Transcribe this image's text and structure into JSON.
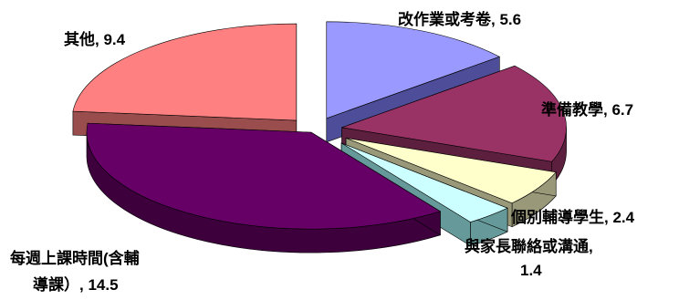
{
  "chart_data": {
    "type": "pie",
    "style": "3d-exploded",
    "slices": [
      {
        "label": "改作業或考卷",
        "value": 5.6,
        "color": "#9999ff",
        "side": "#4d4d99",
        "text": "改作業或考卷, 5.6"
      },
      {
        "label": "準備教學",
        "value": 6.7,
        "color": "#993366",
        "side": "#5c1f3d",
        "text": "準備教學, 6.7"
      },
      {
        "label": "個別輔導學生",
        "value": 2.4,
        "color": "#ffffcc",
        "side": "#99997a",
        "text": "個別輔導學生, 2.4"
      },
      {
        "label": "與家長聯絡或溝通",
        "value": 1.4,
        "color": "#ccffff",
        "side": "#669999",
        "text_lines": [
          "與家長聯絡或溝通,",
          "1.4"
        ]
      },
      {
        "label": "每週上課時間(含輔導課）",
        "value": 14.5,
        "color": "#660066",
        "side": "#3d003d",
        "text_lines": [
          "每週上課時間(含輔",
          "導課）, 14.5"
        ]
      },
      {
        "label": "其他",
        "value": 9.4,
        "color": "#ff8080",
        "side": "#994d4d",
        "text": "其他, 9.4"
      }
    ]
  }
}
